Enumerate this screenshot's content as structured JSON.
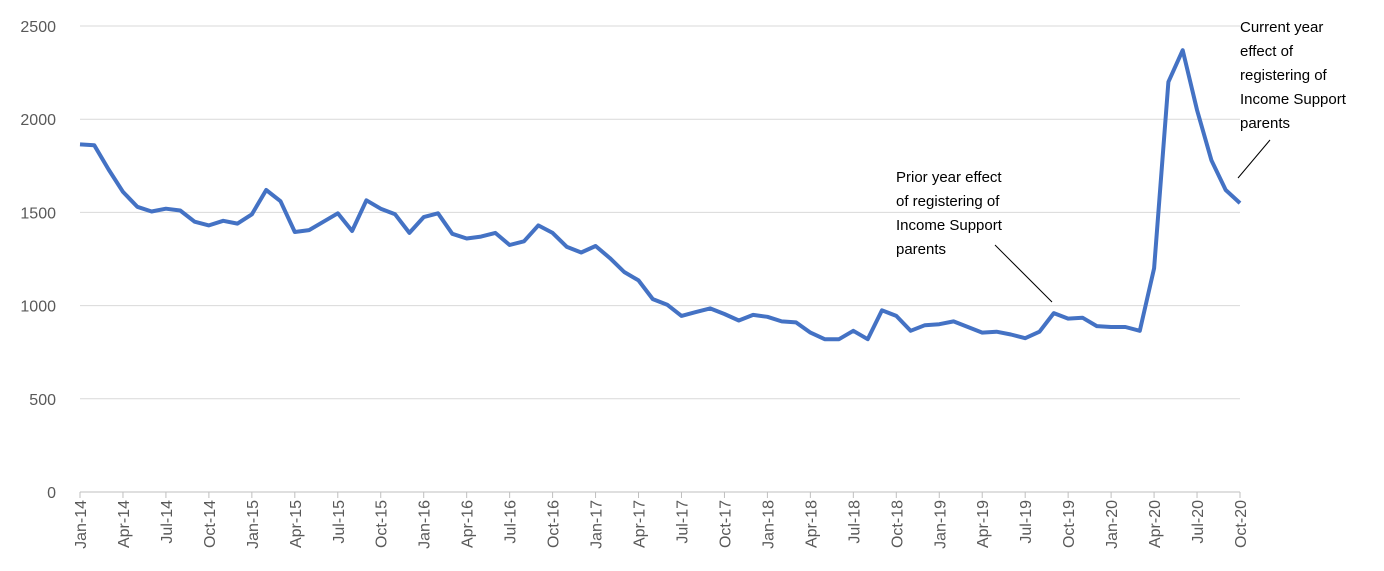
{
  "chart_data": {
    "type": "line",
    "categories": [
      "Jan-14",
      null,
      null,
      "Apr-14",
      null,
      null,
      "Jul-14",
      null,
      null,
      "Oct-14",
      null,
      null,
      "Jan-15",
      null,
      null,
      "Apr-15",
      null,
      null,
      "Jul-15",
      null,
      null,
      "Oct-15",
      null,
      null,
      "Jan-16",
      null,
      null,
      "Apr-16",
      null,
      null,
      "Jul-16",
      null,
      null,
      "Oct-16",
      null,
      null,
      "Jan-17",
      null,
      null,
      "Apr-17",
      null,
      null,
      "Jul-17",
      null,
      null,
      "Oct-17",
      null,
      null,
      "Jan-18",
      null,
      null,
      "Apr-18",
      null,
      null,
      "Jul-18",
      null,
      null,
      "Oct-18",
      null,
      null,
      "Jan-19",
      null,
      null,
      "Apr-19",
      null,
      null,
      "Jul-19",
      null,
      null,
      "Oct-19",
      null,
      null,
      "Jan-20",
      null,
      null,
      "Apr-20",
      null,
      null,
      "Jul-20",
      null,
      null,
      "Oct-20"
    ],
    "series": [
      {
        "color": "#4472c4",
        "values": [
          1865,
          1860,
          1730,
          1610,
          1530,
          1505,
          1520,
          1510,
          1450,
          1430,
          1455,
          1440,
          1490,
          1620,
          1560,
          1395,
          1405,
          1450,
          1495,
          1400,
          1565,
          1520,
          1490,
          1390,
          1475,
          1495,
          1385,
          1360,
          1370,
          1390,
          1325,
          1345,
          1430,
          1390,
          1315,
          1285,
          1320,
          1255,
          1180,
          1135,
          1035,
          1005,
          945,
          965,
          985,
          955,
          920,
          950,
          940,
          915,
          910,
          855,
          820,
          820,
          865,
          820,
          975,
          945,
          865,
          895,
          900,
          915,
          885,
          855,
          860,
          845,
          825,
          860,
          960,
          930,
          935,
          890,
          885,
          885,
          865,
          1200,
          2200,
          2370,
          2050,
          1780,
          1620,
          1550
        ]
      }
    ],
    "ylim": [
      0,
      2500
    ],
    "yticks": [
      0,
      500,
      1000,
      1500,
      2000,
      2500
    ],
    "grid": true,
    "annotations": [
      {
        "lines": [
          "Prior year effect",
          "of registering of",
          "Income Support",
          "parents"
        ]
      },
      {
        "lines": [
          "Current year",
          "effect of",
          "registering of",
          "Income Support",
          "parents"
        ]
      }
    ]
  }
}
